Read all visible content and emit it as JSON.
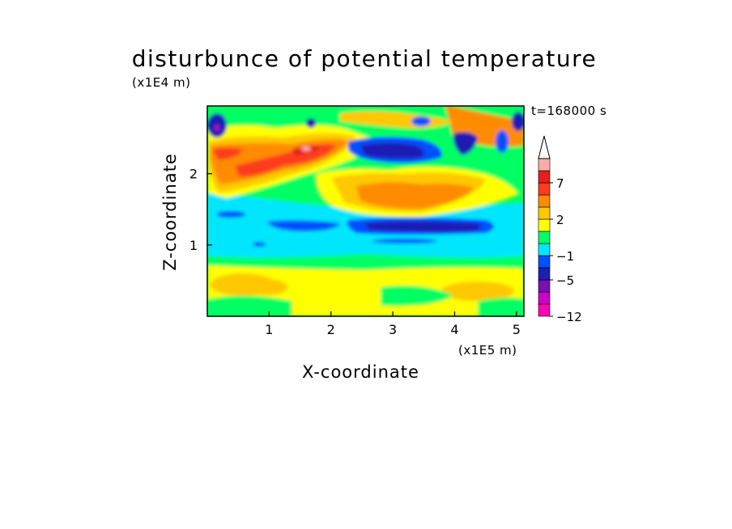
{
  "chart_data": {
    "type": "heatmap",
    "title": "disturbunce of potential temperature",
    "xlabel": "X-coordinate",
    "ylabel": "Z-coordinate",
    "x_unit_label": "(x1E5 m)",
    "z_unit_label": "(x1E4 m)",
    "time_label": "t=168000 s",
    "x_ticks": [
      "1",
      "2",
      "3",
      "4",
      "5"
    ],
    "z_ticks": [
      "1",
      "2"
    ],
    "xlim": [
      0,
      5.12
    ],
    "zlim": [
      0,
      2.95
    ],
    "colorbar": {
      "tick_labels": [
        "-12",
        "-5",
        "-1",
        "2",
        "7"
      ],
      "extend": "max",
      "levels": [
        {
          "color": "#ff00b4",
          "range": [
            -12,
            -9
          ]
        },
        {
          "color": "#cc00c8",
          "range": [
            -9,
            -7
          ]
        },
        {
          "color": "#7a0fb4",
          "range": [
            -7,
            -5
          ]
        },
        {
          "color": "#1e1eb4",
          "range": [
            -5,
            -3
          ]
        },
        {
          "color": "#0050ff",
          "range": [
            -3,
            -1
          ]
        },
        {
          "color": "#00e6ff",
          "range": [
            -1,
            0
          ]
        },
        {
          "color": "#00ff64",
          "range": [
            0,
            1
          ]
        },
        {
          "color": "#ffff00",
          "range": [
            1,
            2
          ]
        },
        {
          "color": "#ffc800",
          "range": [
            2,
            3
          ]
        },
        {
          "color": "#ff8c00",
          "range": [
            3,
            5
          ]
        },
        {
          "color": "#ff3c1e",
          "range": [
            5,
            7
          ]
        },
        {
          "color": "#e61e1e",
          "range": [
            7,
            9
          ]
        },
        {
          "color": "#ffaaaa",
          "range": [
            9,
            11
          ]
        }
      ]
    },
    "features": [
      {
        "x": 1.35,
        "z": 2.4,
        "value": 7
      },
      {
        "x": 0.2,
        "z": 2.3,
        "value": 4
      },
      {
        "x": 0.8,
        "z": 2.05,
        "value": 5
      },
      {
        "x": 3.1,
        "z": 2.3,
        "value": -5
      },
      {
        "x": 4.0,
        "z": 2.3,
        "value": -4
      },
      {
        "x": 3.0,
        "z": 1.6,
        "value": 3
      },
      {
        "x": 3.3,
        "z": 1.25,
        "value": -4
      },
      {
        "x": 1.5,
        "z": 1.25,
        "value": -3
      },
      {
        "x": 2.5,
        "z": 1.1,
        "value": -0.5
      },
      {
        "x": 2.5,
        "z": 0.4,
        "value": 1.5
      },
      {
        "x": 0.7,
        "z": 0.45,
        "value": 2.5
      },
      {
        "x": 0.05,
        "z": 2.7,
        "value": -5
      },
      {
        "x": 5.0,
        "z": 2.7,
        "value": -4
      }
    ]
  }
}
